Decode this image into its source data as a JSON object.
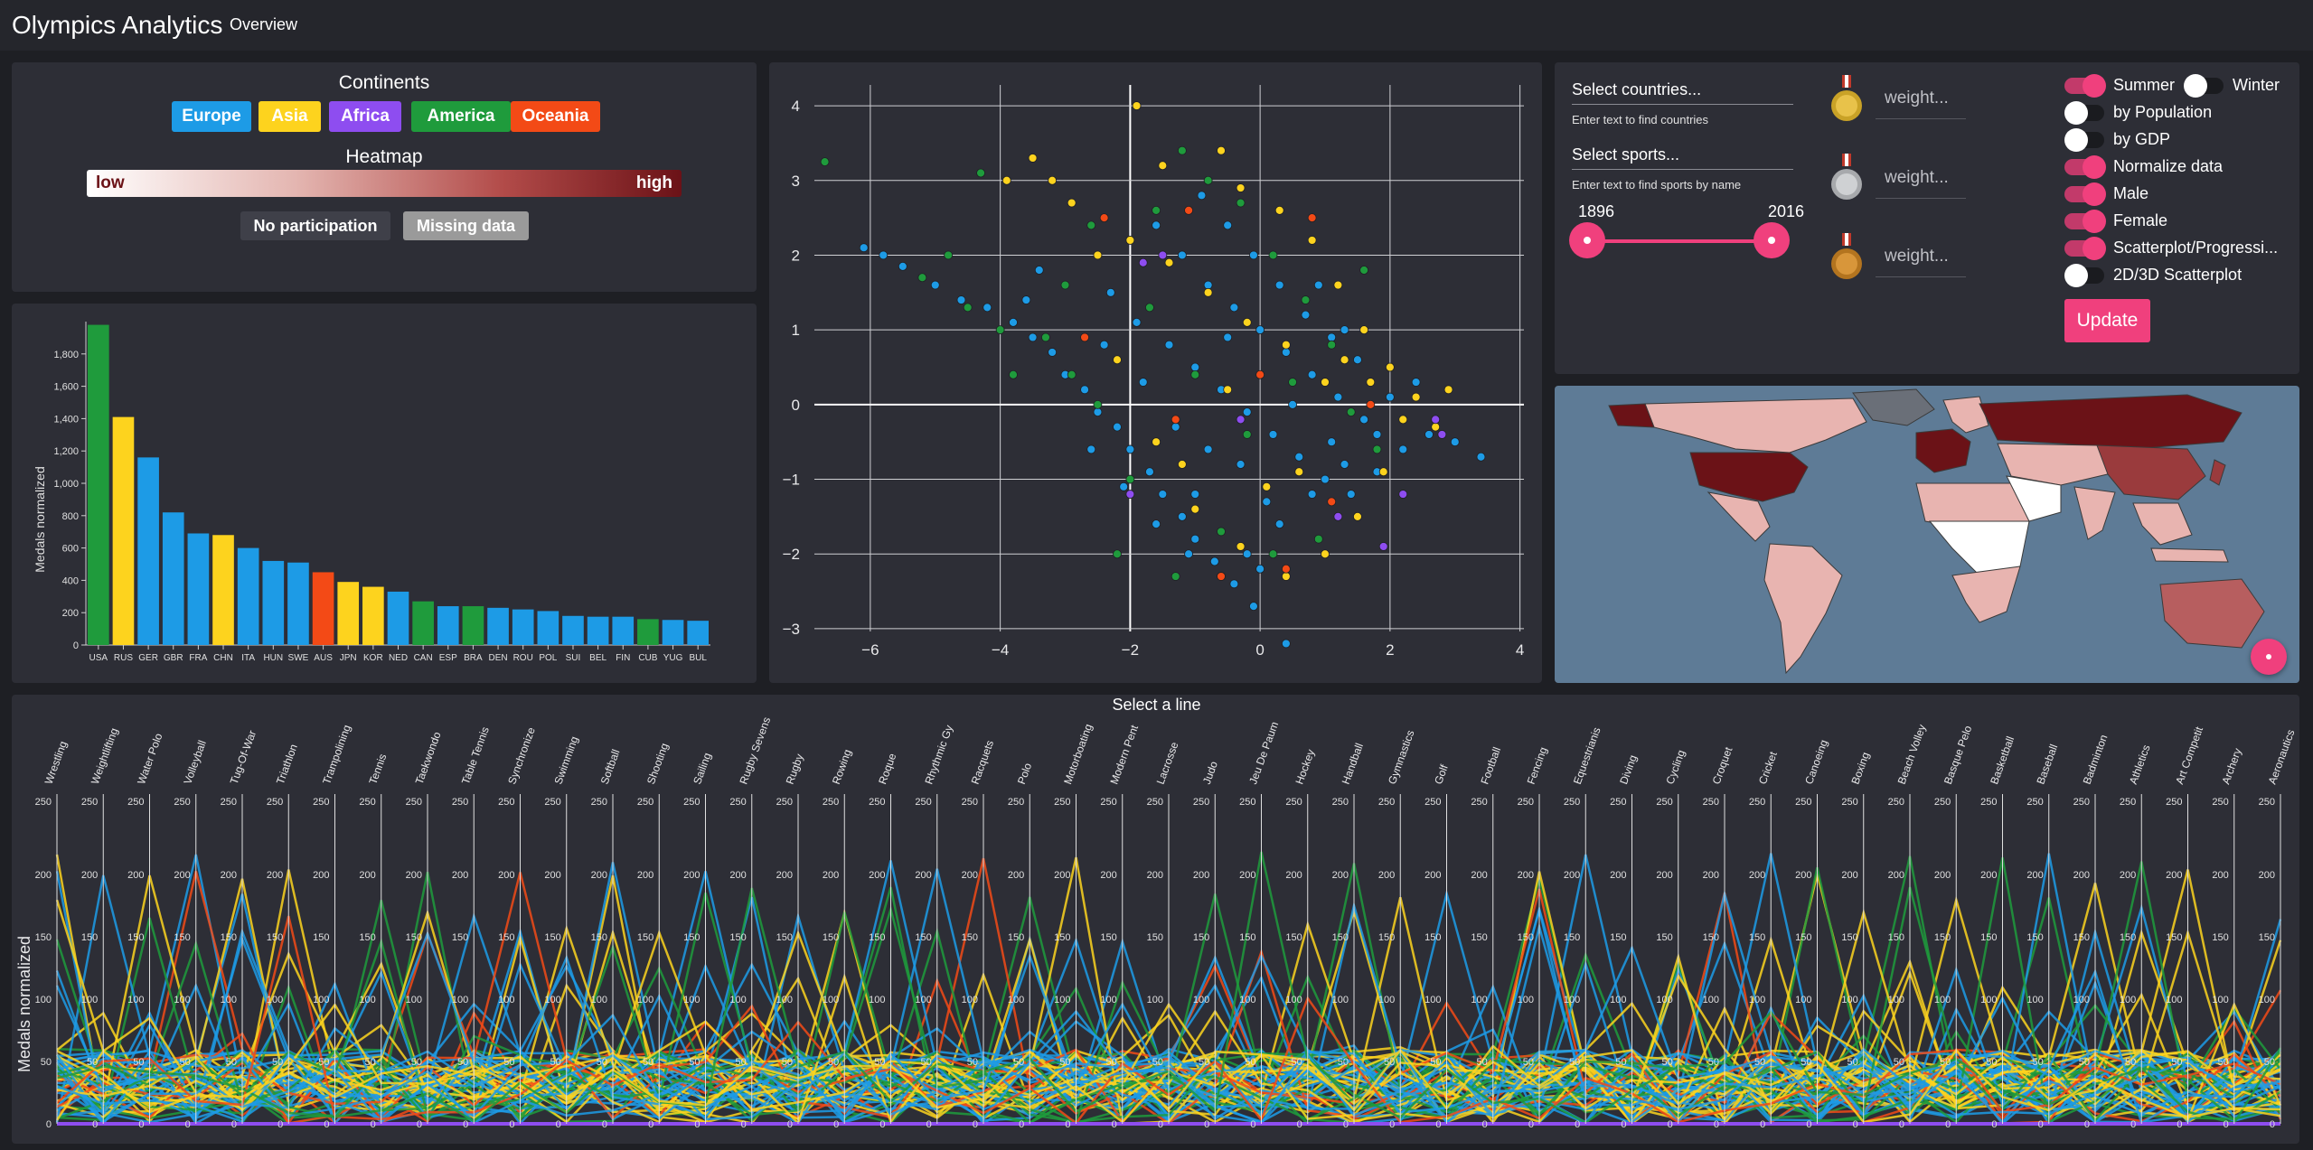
{
  "app": {
    "title": "Olympics Analytics",
    "nav_overview": "Overview"
  },
  "legend": {
    "continents_title": "Continents",
    "continents": [
      {
        "label": "Europe",
        "color": "#1d9be6"
      },
      {
        "label": "Asia",
        "color": "#fdd31e"
      },
      {
        "label": "Africa",
        "color": "#8e4df0"
      },
      {
        "label": "America",
        "color": "#1f9b3c"
      },
      {
        "label": "Oceania",
        "color": "#f34a16"
      }
    ],
    "heatmap_title": "Heatmap",
    "heat_low": "low",
    "heat_high": "high",
    "no_participation": "No participation",
    "missing_data": "Missing data"
  },
  "colors": {
    "Europe": "#1d9be6",
    "Asia": "#fdd31e",
    "Africa": "#8e4df0",
    "America": "#1f9b3c",
    "Oceania": "#f34a16",
    "accent": "#f0407d",
    "panel": "#2d2e36",
    "map_bg": "#5e7b96"
  },
  "controls": {
    "select_countries": "Select countries...",
    "countries_hint": "Enter text to find countries",
    "select_sports": "Select sports...",
    "sports_hint": "Enter text to find sports by name",
    "year_start": "1896",
    "year_end": "2016",
    "weight_placeholder": "weight...",
    "medals": [
      "gold-medal-icon",
      "silver-medal-icon",
      "bronze-medal-icon"
    ],
    "toggles": [
      {
        "label": "Summer",
        "on": true
      },
      {
        "label": "Winter",
        "on": false
      },
      {
        "label": "by Population",
        "on": false
      },
      {
        "label": "by GDP",
        "on": false
      },
      {
        "label": "Normalize data",
        "on": true
      },
      {
        "label": "Male",
        "on": true
      },
      {
        "label": "Female",
        "on": true
      },
      {
        "label": "Scatterplot/Progressi...",
        "on": true
      },
      {
        "label": "2D/3D Scatterplot",
        "on": false
      }
    ],
    "update": "Update"
  },
  "parallel": {
    "title": "Select a line"
  },
  "chart_data": [
    {
      "type": "bar",
      "ylabel": "Medals normalized",
      "categories": [
        "USA",
        "RUS",
        "GER",
        "GBR",
        "FRA",
        "CHN",
        "ITA",
        "HUN",
        "SWE",
        "AUS",
        "JPN",
        "KOR",
        "NED",
        "CAN",
        "ESP",
        "BRA",
        "DEN",
        "ROU",
        "POL",
        "SUI",
        "BEL",
        "FIN",
        "CUB",
        "YUG",
        "BUL"
      ],
      "values": [
        1980,
        1410,
        1160,
        820,
        690,
        680,
        600,
        520,
        510,
        450,
        390,
        360,
        330,
        270,
        240,
        240,
        230,
        220,
        210,
        180,
        175,
        175,
        160,
        155,
        150
      ],
      "continents": [
        "America",
        "Asia",
        "Europe",
        "Europe",
        "Europe",
        "Asia",
        "Europe",
        "Europe",
        "Europe",
        "Oceania",
        "Asia",
        "Asia",
        "Europe",
        "America",
        "Europe",
        "America",
        "Europe",
        "Europe",
        "Europe",
        "Europe",
        "Europe",
        "Europe",
        "America",
        "Europe",
        "Europe"
      ],
      "yticks": [
        0,
        200,
        400,
        600,
        800,
        1000,
        1200,
        1400,
        1600,
        1800
      ],
      "ytick_labels": [
        "0",
        "200",
        "400",
        "600",
        "800",
        "1,000",
        "1,200",
        "1,400",
        "1,600",
        "1,800"
      ],
      "ylim": [
        0,
        2000
      ],
      "grid": false
    },
    {
      "type": "scatter",
      "xlim": [
        -7,
        4.2
      ],
      "ylim": [
        -3.4,
        4.4
      ],
      "xticks": [
        -6,
        -4,
        -2,
        0,
        2,
        4
      ],
      "yticks": [
        -3,
        -2,
        -1,
        0,
        1,
        2,
        3,
        4
      ],
      "xtick_labels": [
        "−6",
        "−4",
        "−2",
        "0",
        "2",
        "4"
      ],
      "ytick_labels": [
        "−3",
        "−2",
        "−1",
        "0",
        "1",
        "2",
        "3",
        "4"
      ],
      "grid": true,
      "series": [
        {
          "name": "Europe",
          "color": "#1d9be6",
          "points": [
            [
              -6.1,
              2.1
            ],
            [
              -5.8,
              2.0
            ],
            [
              -5.5,
              1.85
            ],
            [
              -5.0,
              1.6
            ],
            [
              -4.6,
              1.4
            ],
            [
              -4.2,
              1.3
            ],
            [
              -3.8,
              1.1
            ],
            [
              -3.5,
              0.9
            ],
            [
              -3.2,
              0.7
            ],
            [
              -3.0,
              0.4
            ],
            [
              -2.7,
              0.2
            ],
            [
              -2.5,
              -0.1
            ],
            [
              -2.2,
              -0.3
            ],
            [
              -2.0,
              -0.6
            ],
            [
              -1.7,
              -0.9
            ],
            [
              -1.5,
              -1.2
            ],
            [
              -1.2,
              -1.5
            ],
            [
              -1.0,
              -1.8
            ],
            [
              -0.7,
              -2.1
            ],
            [
              -0.4,
              -2.4
            ],
            [
              -0.1,
              -2.7
            ],
            [
              0.4,
              -3.2
            ],
            [
              -2.3,
              1.5
            ],
            [
              -1.9,
              1.1
            ],
            [
              -1.4,
              0.8
            ],
            [
              -1.0,
              0.5
            ],
            [
              -0.6,
              0.2
            ],
            [
              -0.2,
              -0.1
            ],
            [
              0.2,
              -0.4
            ],
            [
              0.6,
              -0.7
            ],
            [
              1.0,
              -1.0
            ],
            [
              1.4,
              -1.2
            ],
            [
              1.8,
              -0.9
            ],
            [
              2.2,
              -0.6
            ],
            [
              2.6,
              -0.4
            ],
            [
              3.0,
              -0.5
            ],
            [
              3.4,
              -0.7
            ],
            [
              -1.6,
              2.4
            ],
            [
              -1.2,
              2.0
            ],
            [
              -0.8,
              1.6
            ],
            [
              -0.4,
              1.3
            ],
            [
              0.0,
              1.0
            ],
            [
              0.4,
              0.7
            ],
            [
              0.8,
              0.4
            ],
            [
              1.2,
              0.1
            ],
            [
              1.6,
              -0.2
            ],
            [
              2.0,
              0.1
            ],
            [
              2.4,
              0.3
            ],
            [
              -0.9,
              2.8
            ],
            [
              -0.5,
              2.4
            ],
            [
              -0.1,
              2.0
            ],
            [
              0.3,
              1.6
            ],
            [
              0.7,
              1.2
            ],
            [
              1.1,
              0.9
            ],
            [
              1.5,
              0.6
            ],
            [
              -2.6,
              -0.6
            ],
            [
              -2.1,
              -1.1
            ],
            [
              -1.6,
              -1.6
            ],
            [
              -1.1,
              -2.0
            ],
            [
              -0.6,
              -2.3
            ],
            [
              -0.2,
              -2.0
            ],
            [
              0.3,
              -1.6
            ],
            [
              0.8,
              -1.2
            ],
            [
              1.3,
              -0.8
            ],
            [
              1.8,
              -0.4
            ],
            [
              -0.3,
              -0.8
            ],
            [
              0.1,
              -1.3
            ],
            [
              -1.3,
              -0.3
            ],
            [
              -0.8,
              -0.6
            ],
            [
              0.5,
              0.0
            ],
            [
              1.1,
              -0.5
            ],
            [
              -1.8,
              0.3
            ],
            [
              -2.4,
              0.8
            ],
            [
              -0.5,
              0.9
            ],
            [
              0.9,
              1.6
            ],
            [
              1.3,
              1.0
            ],
            [
              -1.0,
              -1.2
            ],
            [
              0.0,
              -2.2
            ],
            [
              -3.4,
              1.8
            ],
            [
              -3.6,
              1.4
            ]
          ]
        },
        {
          "name": "Asia",
          "color": "#fdd31e",
          "points": [
            [
              -3.5,
              3.3
            ],
            [
              -3.2,
              3.0
            ],
            [
              -1.9,
              4.0
            ],
            [
              -1.5,
              3.2
            ],
            [
              -0.6,
              3.4
            ],
            [
              -0.3,
              2.9
            ],
            [
              0.3,
              2.6
            ],
            [
              0.8,
              2.2
            ],
            [
              1.2,
              1.6
            ],
            [
              1.6,
              1.0
            ],
            [
              2.0,
              0.5
            ],
            [
              2.4,
              0.1
            ],
            [
              2.7,
              -0.3
            ],
            [
              2.9,
              0.2
            ],
            [
              1.9,
              -0.9
            ],
            [
              1.5,
              -1.5
            ],
            [
              1.0,
              -2.0
            ],
            [
              0.4,
              -2.3
            ],
            [
              -0.3,
              -1.9
            ],
            [
              -1.0,
              -1.4
            ],
            [
              -1.6,
              -0.5
            ],
            [
              -2.2,
              0.6
            ],
            [
              -2.0,
              2.2
            ],
            [
              -1.4,
              1.9
            ],
            [
              -0.8,
              1.5
            ],
            [
              -0.2,
              1.1
            ],
            [
              0.4,
              0.8
            ],
            [
              1.0,
              0.3
            ],
            [
              -0.5,
              0.2
            ],
            [
              0.6,
              -0.9
            ],
            [
              1.3,
              0.6
            ],
            [
              -1.2,
              -0.8
            ],
            [
              0.1,
              -1.1
            ],
            [
              2.2,
              -0.2
            ],
            [
              1.7,
              0.3
            ],
            [
              -2.5,
              2.0
            ],
            [
              -3.9,
              3.0
            ],
            [
              -2.9,
              2.7
            ]
          ]
        },
        {
          "name": "Africa",
          "color": "#8e4df0",
          "points": [
            [
              -1.8,
              1.9
            ],
            [
              2.7,
              -0.2
            ],
            [
              2.8,
              -0.4
            ],
            [
              2.2,
              -1.2
            ],
            [
              1.9,
              -1.9
            ],
            [
              -1.5,
              2.0
            ],
            [
              -0.3,
              -0.2
            ],
            [
              1.2,
              -1.5
            ],
            [
              -2.0,
              -1.2
            ]
          ]
        },
        {
          "name": "America",
          "color": "#1f9b3c",
          "points": [
            [
              -6.7,
              3.25
            ],
            [
              -5.2,
              1.7
            ],
            [
              -4.8,
              2.0
            ],
            [
              -4.5,
              1.3
            ],
            [
              -4.0,
              1.0
            ],
            [
              -3.8,
              0.4
            ],
            [
              -3.3,
              0.9
            ],
            [
              -3.0,
              1.6
            ],
            [
              -2.5,
              0.0
            ],
            [
              -2.0,
              -1.0
            ],
            [
              -1.6,
              2.6
            ],
            [
              -1.2,
              3.4
            ],
            [
              -0.8,
              3.0
            ],
            [
              -0.3,
              2.7
            ],
            [
              0.2,
              2.0
            ],
            [
              0.7,
              1.4
            ],
            [
              1.1,
              0.8
            ],
            [
              1.4,
              -0.1
            ],
            [
              1.8,
              -0.6
            ],
            [
              0.9,
              -1.8
            ],
            [
              0.2,
              -2.0
            ],
            [
              -0.6,
              -1.7
            ],
            [
              -1.3,
              -2.3
            ],
            [
              -2.2,
              -2.0
            ],
            [
              -1.0,
              0.4
            ],
            [
              -0.2,
              -0.4
            ],
            [
              0.5,
              0.3
            ],
            [
              -1.7,
              1.3
            ],
            [
              -2.6,
              2.4
            ],
            [
              -4.3,
              3.1
            ],
            [
              -2.9,
              0.4
            ],
            [
              1.6,
              1.8
            ]
          ]
        },
        {
          "name": "Oceania",
          "color": "#f34a16",
          "points": [
            [
              -2.4,
              2.5
            ],
            [
              -1.1,
              2.6
            ],
            [
              0.8,
              2.5
            ],
            [
              -0.6,
              -2.3
            ],
            [
              1.1,
              -1.3
            ],
            [
              0.0,
              0.4
            ],
            [
              -1.3,
              -0.2
            ],
            [
              1.7,
              0.0
            ],
            [
              -2.7,
              0.9
            ],
            [
              0.4,
              -2.2
            ]
          ]
        }
      ]
    },
    {
      "type": "parallel",
      "ylabel": "Medals normalized",
      "axis_ticks": [
        "0",
        "50",
        "100",
        "150",
        "200",
        "250"
      ],
      "dimensions": [
        "Wrestling",
        "Weightlifting",
        "Water Polo",
        "Volleyball",
        "Tug-Of-War",
        "Triathlon",
        "Trampolining",
        "Tennis",
        "Taekwondo",
        "Table Tennis",
        "Synchronize",
        "Swimming",
        "Softball",
        "Shooting",
        "Sailing",
        "Rugby Sevens",
        "Rugby",
        "Rowing",
        "Roque",
        "Rhythmic Gy",
        "Racquets",
        "Polo",
        "Motorboating",
        "Modern Pent",
        "Lacrosse",
        "Judo",
        "Jeu De Paum",
        "Hockey",
        "Handball",
        "Gymnastics",
        "Golf",
        "Football",
        "Fencing",
        "Equestrianis",
        "Diving",
        "Cycling",
        "Croquet",
        "Cricket",
        "Canoeing",
        "Boxing",
        "Beach Volley",
        "Basque Pelo",
        "Basketball",
        "Baseball",
        "Badminton",
        "Athletics",
        "Art Competit",
        "Archery",
        "Aeronautics"
      ]
    }
  ]
}
